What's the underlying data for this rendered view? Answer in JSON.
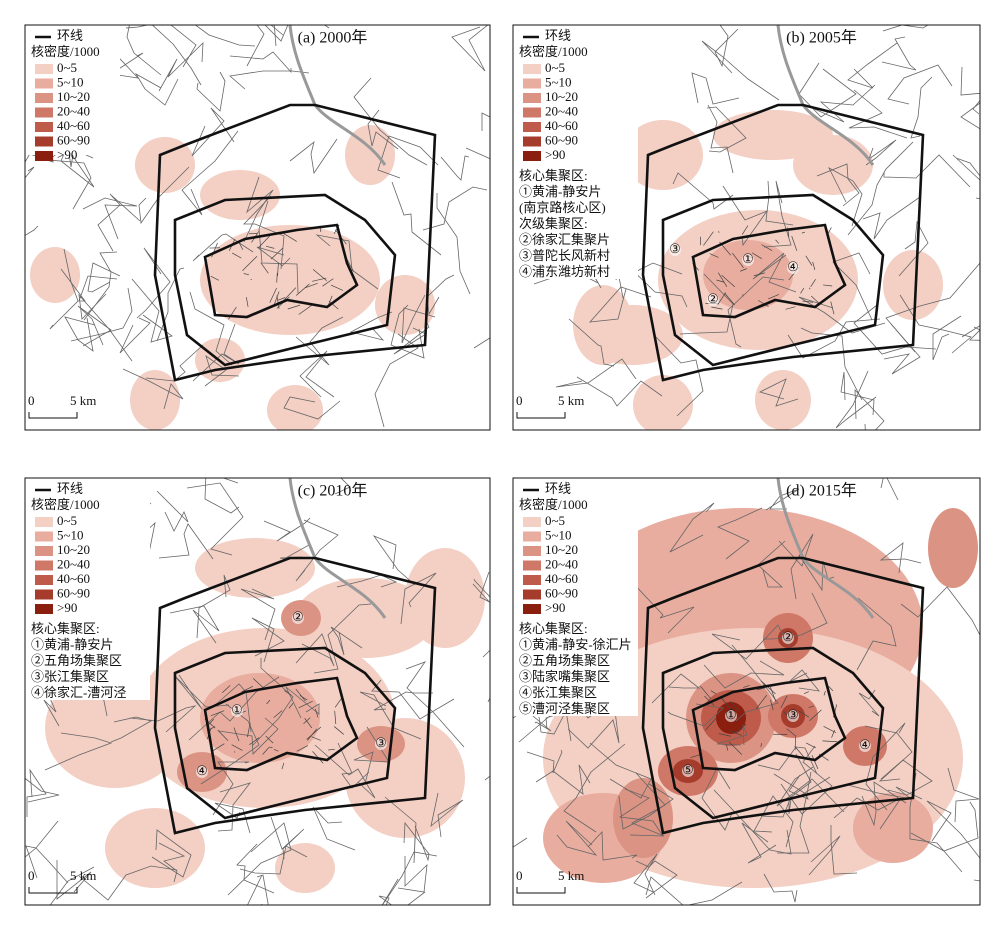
{
  "legend": {
    "ring_road": "环线",
    "title": "核密度/1000",
    "classes": [
      "0~5",
      "5~10",
      "10~20",
      "20~40",
      "40~60",
      "60~90",
      ">90"
    ],
    "colors": [
      "#f3cfc4",
      "#e8ad9f",
      "#db9384",
      "#cf7868",
      "#bf5b4a",
      "#a63c2c",
      "#8a1f10"
    ]
  },
  "scale": {
    "zero": "0",
    "length": "5 km"
  },
  "panels": [
    {
      "title": "(a) 2000年",
      "notes": [],
      "markers": []
    },
    {
      "title": "(b) 2005年",
      "notes": [
        "核心集聚区:",
        "①黄浦-静安片",
        "(南京路核心区)",
        "次级集聚区:",
        "②徐家汇集聚片",
        "③普陀长风新村",
        "④浦东潍坊新村"
      ],
      "markers": [
        "①",
        "②",
        "③",
        "④"
      ]
    },
    {
      "title": "(c) 2010年",
      "notes": [
        "核心集聚区:",
        "①黄浦-静安片",
        "②五角场集聚区",
        "③张江集聚区",
        "④徐家汇-漕河泾"
      ],
      "markers": [
        "①",
        "②",
        "③",
        "④"
      ]
    },
    {
      "title": "(d) 2015年",
      "notes": [
        "核心集聚区:",
        "①黄浦-静安-徐汇片",
        "②五角场集聚区",
        "③陆家嘴集聚区",
        "④张江集聚区",
        "⑤漕河泾集聚区"
      ],
      "markers": [
        "①",
        "②",
        "③",
        "④",
        "⑤"
      ]
    }
  ]
}
